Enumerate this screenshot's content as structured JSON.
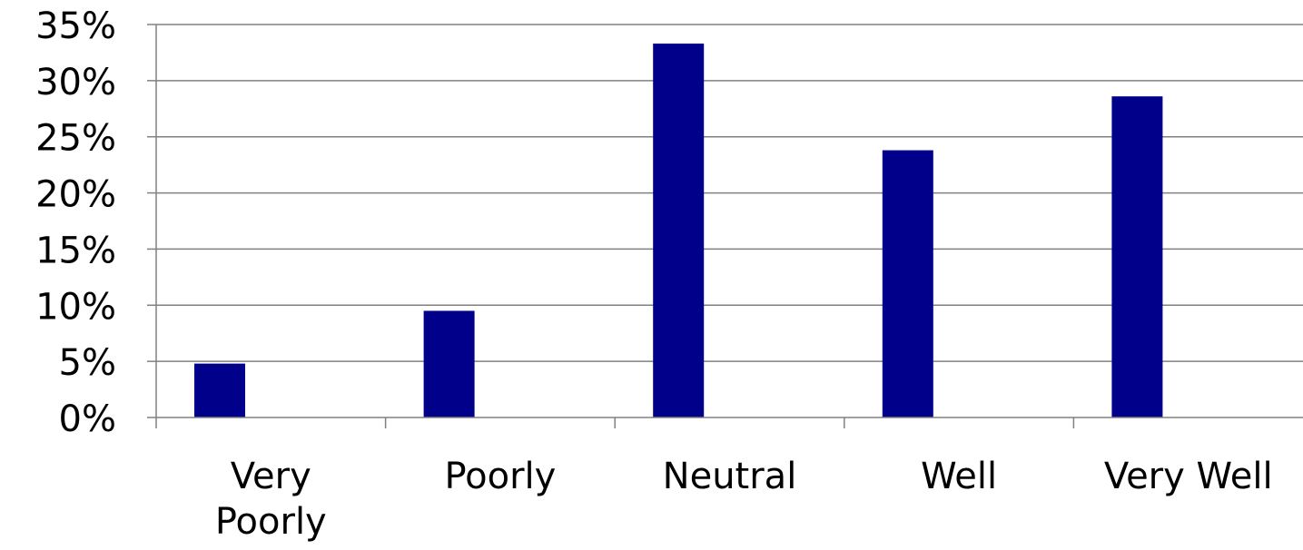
{
  "chart_data": {
    "type": "bar",
    "categories": [
      "Very Poorly",
      "Poorly",
      "Neutral",
      "Well",
      "Very Well"
    ],
    "category_lines": [
      [
        "Very",
        "Poorly"
      ],
      [
        "Poorly"
      ],
      [
        "Neutral"
      ],
      [
        "Well"
      ],
      [
        "Very Well"
      ]
    ],
    "values": [
      4.8,
      9.5,
      33.3,
      23.8,
      28.6
    ],
    "ylim": [
      0,
      35
    ],
    "yticks": [
      0,
      5,
      10,
      15,
      20,
      25,
      30,
      35
    ],
    "ytick_labels": [
      "0%",
      "5%",
      "10%",
      "15%",
      "20%",
      "25%",
      "30%",
      "35%"
    ],
    "grid": true,
    "legend": "none",
    "colors": {
      "bar": "#00008B",
      "grid": "#808080",
      "axis": "#808080"
    }
  }
}
